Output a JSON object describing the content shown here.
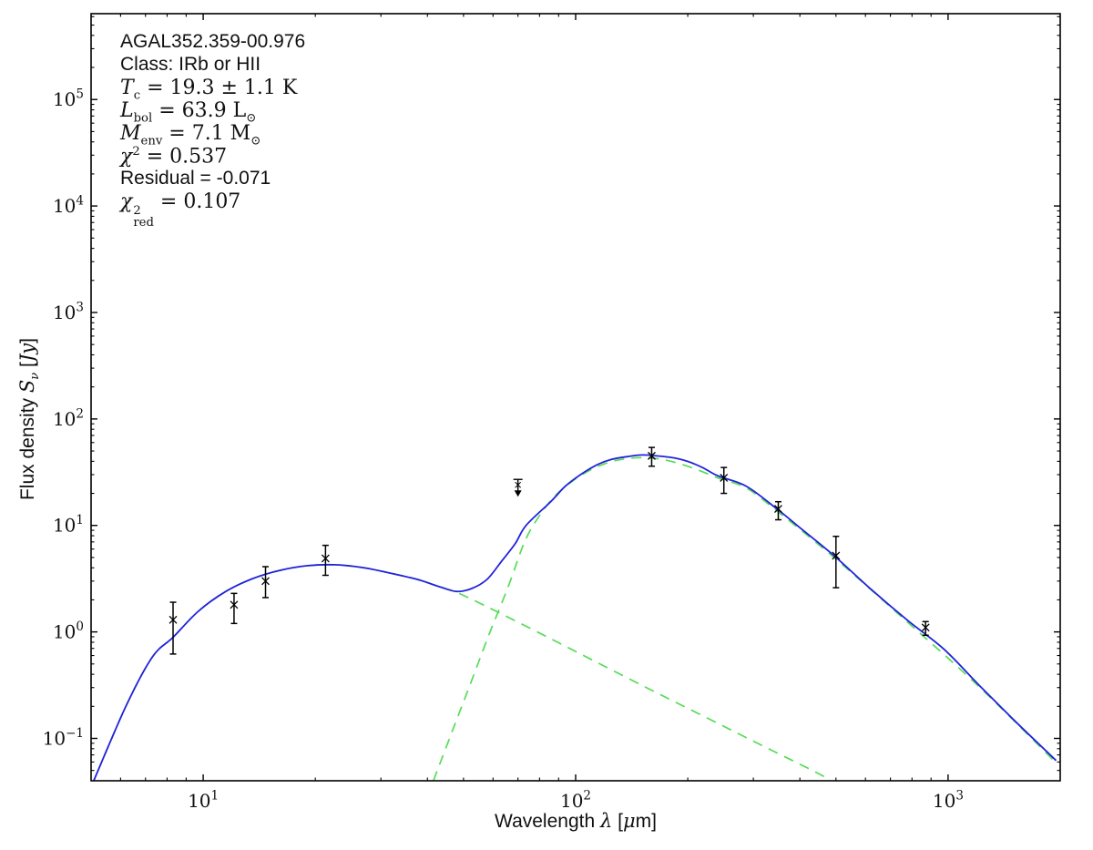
{
  "figure": {
    "background": "#ffffff",
    "frame_color": "#000000"
  },
  "annotation": {
    "source_name": "AGAL352.359-00.976",
    "class_line": "Class: IRb or HII",
    "tc": {
      "sym": "T",
      "sub": "c",
      "rest": " = 19.3 ± 1.1 K"
    },
    "lbol": {
      "sym": "L",
      "sub": "bol",
      "rest": " = 63.9 L",
      "unitsub": "⊙"
    },
    "menv": {
      "sym": "M",
      "sub": "env",
      "rest": " = 7.1 M",
      "unitsub": "⊙"
    },
    "chi2": {
      "sym": "χ",
      "sup": "2",
      "rest": " = 0.537"
    },
    "residual": "Residual = -0.071",
    "chi2red": {
      "sym": "χ",
      "sup": "2",
      "sub": "red",
      "rest": " = 0.107"
    }
  },
  "labels": {
    "xlabel_parts": {
      "pre": "Wavelength ",
      "sym": "λ",
      "post": " [",
      "mu": "μ",
      "post2": "m]"
    },
    "ylabel_parts": {
      "pre": "Flux density ",
      "sym": "S",
      "sub": "ν",
      "post": " [",
      "jy": "Jy",
      "post2": "]"
    }
  },
  "chart_data": {
    "type": "line",
    "title": "AGAL352.359-00.976",
    "xlabel": "Wavelength λ [μm]",
    "ylabel": "Flux density Sν [Jy]",
    "xscale": "log",
    "yscale": "log",
    "xlim": [
      5,
      2000
    ],
    "ylim": [
      0.04,
      640000
    ],
    "grid": false,
    "legend": "none",
    "colors": {
      "total_model": "#2222dd",
      "components": "#55dd55",
      "data": "#000000"
    },
    "x_axis": {
      "major_ticks": [
        {
          "value": 10,
          "label_base": "10",
          "label_exp": "1"
        },
        {
          "value": 100,
          "label_base": "10",
          "label_exp": "2"
        },
        {
          "value": 1000,
          "label_base": "10",
          "label_exp": "3"
        }
      ]
    },
    "y_axis": {
      "major_ticks": [
        {
          "value": 0.1,
          "label_base": "10",
          "label_exp": "−1"
        },
        {
          "value": 1,
          "label_base": "10",
          "label_exp": "0"
        },
        {
          "value": 10,
          "label_base": "10",
          "label_exp": "1"
        },
        {
          "value": 100,
          "label_base": "10",
          "label_exp": "2"
        },
        {
          "value": 1000,
          "label_base": "10",
          "label_exp": "3"
        },
        {
          "value": 10000,
          "label_base": "10",
          "label_exp": "4"
        },
        {
          "value": 100000,
          "label_base": "10",
          "label_exp": "5"
        }
      ]
    },
    "series": [
      {
        "name": "observed-fluxes",
        "type": "scatter-errorbar",
        "marker": "x",
        "color": "#000000",
        "points": [
          {
            "wavelength_um": 8.3,
            "flux_jy": 1.3,
            "flux_lo": 0.62,
            "flux_hi": 1.9
          },
          {
            "wavelength_um": 12.1,
            "flux_jy": 1.8,
            "flux_lo": 1.2,
            "flux_hi": 2.3
          },
          {
            "wavelength_um": 14.7,
            "flux_jy": 3.0,
            "flux_lo": 2.1,
            "flux_hi": 4.1
          },
          {
            "wavelength_um": 21.3,
            "flux_jy": 4.9,
            "flux_lo": 3.4,
            "flux_hi": 6.5
          },
          {
            "wavelength_um": 160,
            "flux_jy": 45,
            "flux_lo": 36,
            "flux_hi": 54
          },
          {
            "wavelength_um": 250,
            "flux_jy": 28,
            "flux_lo": 20,
            "flux_hi": 35
          },
          {
            "wavelength_um": 350,
            "flux_jy": 14.3,
            "flux_lo": 11.3,
            "flux_hi": 16.7
          },
          {
            "wavelength_um": 500,
            "flux_jy": 5.2,
            "flux_lo": 2.6,
            "flux_hi": 7.9
          },
          {
            "wavelength_um": 870,
            "flux_jy": 1.1,
            "flux_lo": 0.93,
            "flux_hi": 1.25
          }
        ]
      },
      {
        "name": "upper-limit",
        "type": "upper-limit",
        "color": "#000000",
        "points": [
          {
            "wavelength_um": 70,
            "flux_jy": 25
          }
        ]
      },
      {
        "name": "total-model",
        "type": "line",
        "style": "solid",
        "color": "#2222dd",
        "points": [
          [
            5.0,
            0.035
          ],
          [
            6.2,
            0.2
          ],
          [
            7.3,
            0.58
          ],
          [
            8.3,
            0.89
          ],
          [
            9.7,
            1.56
          ],
          [
            11.5,
            2.4
          ],
          [
            13.6,
            3.17
          ],
          [
            16.1,
            3.79
          ],
          [
            19.1,
            4.19
          ],
          [
            22.6,
            4.27
          ],
          [
            26.8,
            4.02
          ],
          [
            31.7,
            3.57
          ],
          [
            37.6,
            3.11
          ],
          [
            43.2,
            2.65
          ],
          [
            47.8,
            2.4
          ],
          [
            52.5,
            2.55
          ],
          [
            57.8,
            3.11
          ],
          [
            63.3,
            4.62
          ],
          [
            68.8,
            6.73
          ],
          [
            73.6,
            10.0
          ],
          [
            85.7,
            16.7
          ],
          [
            93.9,
            23.4
          ],
          [
            103.5,
            30.3
          ],
          [
            114,
            37.0
          ],
          [
            124.5,
            41.6
          ],
          [
            137,
            44.2
          ],
          [
            150.5,
            45.9
          ],
          [
            165,
            45.0
          ],
          [
            181.5,
            43.3
          ],
          [
            199.6,
            40.0
          ],
          [
            219.6,
            34.8
          ],
          [
            241.5,
            29.1
          ],
          [
            287,
            23.4
          ],
          [
            347,
            14.3
          ],
          [
            399,
            9.6
          ],
          [
            494,
            5.2
          ],
          [
            622,
            2.5
          ],
          [
            779,
            1.28
          ],
          [
            974,
            0.69
          ],
          [
            1218,
            0.31
          ],
          [
            1523,
            0.142
          ],
          [
            1950,
            0.062
          ]
        ]
      },
      {
        "name": "warm-component",
        "type": "line",
        "style": "dashed",
        "color": "#55dd55",
        "points": [
          [
            5.0,
            0.035
          ],
          [
            6.2,
            0.2
          ],
          [
            7.3,
            0.58
          ],
          [
            8.3,
            0.89
          ],
          [
            9.7,
            1.56
          ],
          [
            11.5,
            2.4
          ],
          [
            13.6,
            3.17
          ],
          [
            16.1,
            3.79
          ],
          [
            19.1,
            4.19
          ],
          [
            22.6,
            4.27
          ],
          [
            26.8,
            4.02
          ],
          [
            31.7,
            3.57
          ],
          [
            37.6,
            3.11
          ],
          [
            43.2,
            2.64
          ],
          [
            47.8,
            2.36
          ],
          [
            58.7,
            1.68
          ],
          [
            82.2,
            0.93
          ],
          [
            115,
            0.51
          ],
          [
            161,
            0.28
          ],
          [
            225,
            0.156
          ],
          [
            316,
            0.086
          ],
          [
            442,
            0.048
          ],
          [
            478,
            0.041
          ]
        ]
      },
      {
        "name": "cold-component",
        "type": "line",
        "style": "dashed",
        "color": "#55dd55",
        "points": [
          [
            41.5,
            0.04
          ],
          [
            46.9,
            0.123
          ],
          [
            52.5,
            0.345
          ],
          [
            58.7,
            0.97
          ],
          [
            65.9,
            2.65
          ],
          [
            72.3,
            6.5
          ],
          [
            77.7,
            10.6
          ],
          [
            86.9,
            18.1
          ],
          [
            97.9,
            25.9
          ],
          [
            110,
            33.4
          ],
          [
            123,
            39.2
          ],
          [
            137,
            42.4
          ],
          [
            153,
            43.3
          ],
          [
            171,
            41.6
          ],
          [
            192,
            37.7
          ],
          [
            215,
            32.8
          ],
          [
            241.5,
            27.8
          ],
          [
            287,
            22.5
          ],
          [
            347,
            13.7
          ],
          [
            494,
            5.0
          ],
          [
            779,
            1.23
          ],
          [
            1218,
            0.3
          ],
          [
            1950,
            0.059
          ]
        ]
      }
    ]
  }
}
